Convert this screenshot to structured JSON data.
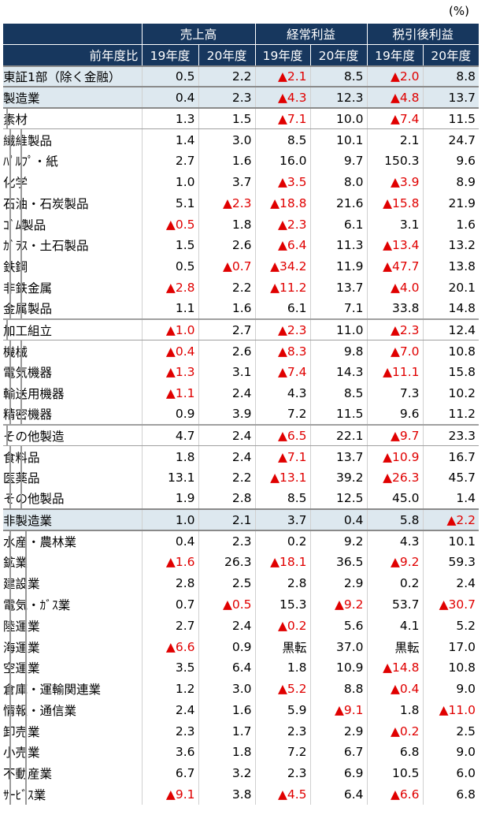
{
  "unit": "(%)",
  "header": {
    "groups": [
      "売上高",
      "経常利益",
      "税引後利益"
    ],
    "corner": "前年度比",
    "years": [
      "19年度",
      "20年度",
      "19年度",
      "20年度",
      "19年度",
      "20年度"
    ]
  },
  "rows": [
    {
      "name": "東証1部（除く金融）",
      "level": 0,
      "values": [
        "0.5",
        "2.2",
        "▲2.1",
        "8.5",
        "▲2.0",
        "8.8"
      ]
    },
    {
      "name": "製造業",
      "level": 0,
      "values": [
        "0.4",
        "2.3",
        "▲4.3",
        "12.3",
        "▲4.8",
        "13.7"
      ]
    },
    {
      "name": "素材",
      "level": 1,
      "values": [
        "1.3",
        "1.5",
        "▲7.1",
        "10.0",
        "▲7.4",
        "11.5"
      ]
    },
    {
      "name": "繊維製品",
      "level": 2,
      "values": [
        "1.4",
        "3.0",
        "8.5",
        "10.1",
        "2.1",
        "24.7"
      ]
    },
    {
      "name": "ﾊﾟﾙﾌﾟ・紙",
      "level": 2,
      "values": [
        "2.7",
        "1.6",
        "16.0",
        "9.7",
        "150.3",
        "9.6"
      ]
    },
    {
      "name": "化学",
      "level": 2,
      "values": [
        "1.0",
        "3.7",
        "▲3.5",
        "8.0",
        "▲3.9",
        "8.9"
      ]
    },
    {
      "name": "石油・石炭製品",
      "level": 2,
      "values": [
        "5.1",
        "▲2.3",
        "▲18.8",
        "21.6",
        "▲15.8",
        "21.9"
      ]
    },
    {
      "name": "ｺﾞﾑ製品",
      "level": 2,
      "values": [
        "▲0.5",
        "1.8",
        "▲2.3",
        "6.1",
        "3.1",
        "1.6"
      ]
    },
    {
      "name": "ｶﾞﾗｽ・土石製品",
      "level": 2,
      "values": [
        "1.5",
        "2.6",
        "▲6.4",
        "11.3",
        "▲13.4",
        "13.2"
      ]
    },
    {
      "name": "鉄鋼",
      "level": 2,
      "values": [
        "0.5",
        "▲0.7",
        "▲34.2",
        "11.9",
        "▲47.7",
        "13.8"
      ]
    },
    {
      "name": "非鉄金属",
      "level": 2,
      "values": [
        "▲2.8",
        "2.2",
        "▲11.2",
        "13.7",
        "▲4.0",
        "20.1"
      ]
    },
    {
      "name": "金属製品",
      "level": 2,
      "values": [
        "1.1",
        "1.6",
        "6.1",
        "7.1",
        "33.8",
        "14.8"
      ]
    },
    {
      "name": "加工組立",
      "level": 1,
      "values": [
        "▲1.0",
        "2.7",
        "▲2.3",
        "11.0",
        "▲2.3",
        "12.4"
      ]
    },
    {
      "name": "機械",
      "level": 2,
      "values": [
        "▲0.4",
        "2.6",
        "▲8.3",
        "9.8",
        "▲7.0",
        "10.8"
      ]
    },
    {
      "name": "電気機器",
      "level": 2,
      "values": [
        "▲1.3",
        "3.1",
        "▲7.4",
        "14.3",
        "▲11.1",
        "15.8"
      ]
    },
    {
      "name": "輸送用機器",
      "level": 2,
      "values": [
        "▲1.1",
        "2.4",
        "4.3",
        "8.5",
        "7.3",
        "10.2"
      ]
    },
    {
      "name": "精密機器",
      "level": 2,
      "values": [
        "0.9",
        "3.9",
        "7.2",
        "11.5",
        "9.6",
        "11.2"
      ]
    },
    {
      "name": "その他製造",
      "level": 1,
      "values": [
        "4.7",
        "2.4",
        "▲6.5",
        "22.1",
        "▲9.7",
        "23.3"
      ]
    },
    {
      "name": "食料品",
      "level": 2,
      "values": [
        "1.8",
        "2.4",
        "▲7.1",
        "13.7",
        "▲10.9",
        "16.7"
      ]
    },
    {
      "name": "医薬品",
      "level": 2,
      "values": [
        "13.1",
        "2.2",
        "▲13.1",
        "39.2",
        "▲26.3",
        "45.7"
      ]
    },
    {
      "name": "その他製品",
      "level": 2,
      "values": [
        "1.9",
        "2.8",
        "8.5",
        "12.5",
        "45.0",
        "1.4"
      ]
    },
    {
      "name": "非製造業",
      "level": 0,
      "values": [
        "1.0",
        "2.1",
        "3.7",
        "0.4",
        "5.8",
        "▲2.2"
      ]
    },
    {
      "name": "水産・農林業",
      "level": 3,
      "values": [
        "0.4",
        "2.3",
        "0.2",
        "9.2",
        "4.3",
        "10.1"
      ]
    },
    {
      "name": "鉱業",
      "level": 3,
      "values": [
        "▲1.6",
        "26.3",
        "▲18.1",
        "36.5",
        "▲9.2",
        "59.3"
      ]
    },
    {
      "name": "建設業",
      "level": 3,
      "values": [
        "2.8",
        "2.5",
        "2.8",
        "2.9",
        "0.2",
        "2.4"
      ]
    },
    {
      "name": "電気・ｶﾞｽ業",
      "level": 3,
      "values": [
        "0.7",
        "▲0.5",
        "15.3",
        "▲9.2",
        "53.7",
        "▲30.7"
      ]
    },
    {
      "name": "陸運業",
      "level": 3,
      "values": [
        "2.7",
        "2.4",
        "▲0.2",
        "5.6",
        "4.1",
        "5.2"
      ]
    },
    {
      "name": "海運業",
      "level": 3,
      "values": [
        "▲6.6",
        "0.9",
        "黒転",
        "37.0",
        "黒転",
        "17.0"
      ]
    },
    {
      "name": "空運業",
      "level": 3,
      "values": [
        "3.5",
        "6.4",
        "1.8",
        "10.9",
        "▲14.8",
        "10.8"
      ]
    },
    {
      "name": "倉庫・運輸関連業",
      "level": 3,
      "values": [
        "1.2",
        "3.0",
        "▲5.2",
        "8.8",
        "▲0.4",
        "9.0"
      ]
    },
    {
      "name": "情報・通信業",
      "level": 3,
      "values": [
        "2.4",
        "1.6",
        "5.9",
        "▲9.1",
        "1.8",
        "▲11.0"
      ]
    },
    {
      "name": "卸売業",
      "level": 3,
      "values": [
        "2.3",
        "1.7",
        "2.3",
        "2.9",
        "▲0.2",
        "2.5"
      ]
    },
    {
      "name": "小売業",
      "level": 3,
      "values": [
        "3.6",
        "1.8",
        "7.2",
        "6.7",
        "6.8",
        "9.0"
      ]
    },
    {
      "name": "不動産業",
      "level": 3,
      "values": [
        "6.7",
        "3.2",
        "2.3",
        "6.9",
        "10.5",
        "6.0"
      ]
    },
    {
      "name": "ｻｰﾋﾞｽ業",
      "level": 3,
      "values": [
        "▲9.1",
        "3.8",
        "▲4.5",
        "6.4",
        "▲6.6",
        "6.8"
      ]
    }
  ],
  "colors": {
    "header_bg": "#17375e",
    "negative": "#e00000",
    "top_row_bg": "#dde8ef"
  }
}
